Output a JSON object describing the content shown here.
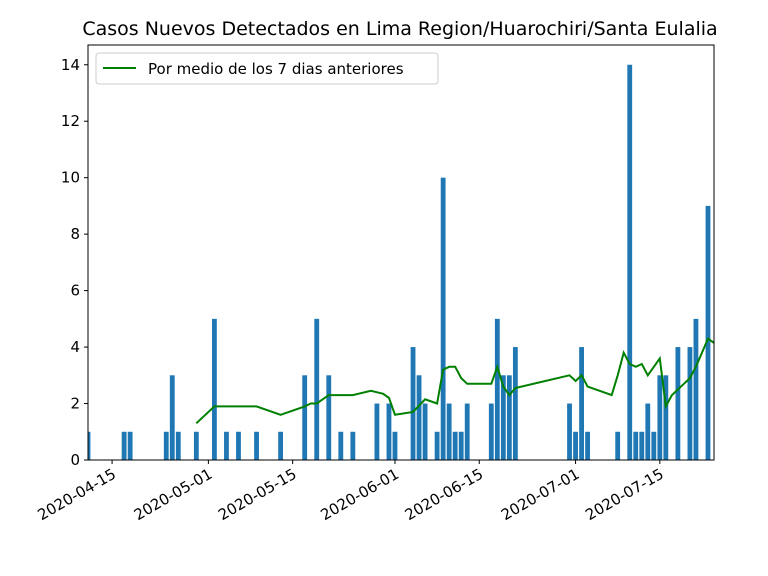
{
  "chart_data": {
    "type": "bar",
    "title": "Casos Nuevos Detectados en Lima Region/Huarochiri/Santa Eulalia",
    "xlabel": "",
    "ylabel": "",
    "ylim": [
      0,
      14.7
    ],
    "xlim": [
      "2020-04-11",
      "2020-07-24"
    ],
    "yticks": [
      0,
      2,
      4,
      6,
      8,
      10,
      12,
      14
    ],
    "xticks": [
      "2020-04-15",
      "2020-05-01",
      "2020-05-15",
      "2020-06-01",
      "2020-06-15",
      "2020-07-01",
      "2020-07-15"
    ],
    "grid": false,
    "legend_position": "top-left",
    "bar_color": "#1f77b4",
    "series": [
      {
        "type": "bar",
        "dates": [
          "2020-04-11",
          "2020-04-17",
          "2020-04-18",
          "2020-04-24",
          "2020-04-25",
          "2020-04-26",
          "2020-04-29",
          "2020-05-02",
          "2020-05-04",
          "2020-05-06",
          "2020-05-09",
          "2020-05-13",
          "2020-05-17",
          "2020-05-19",
          "2020-05-21",
          "2020-05-23",
          "2020-05-25",
          "2020-05-29",
          "2020-05-31",
          "2020-06-01",
          "2020-06-04",
          "2020-06-05",
          "2020-06-06",
          "2020-06-08",
          "2020-06-09",
          "2020-06-10",
          "2020-06-11",
          "2020-06-12",
          "2020-06-13",
          "2020-06-17",
          "2020-06-18",
          "2020-06-19",
          "2020-06-20",
          "2020-06-21",
          "2020-06-30",
          "2020-07-01",
          "2020-07-02",
          "2020-07-03",
          "2020-07-08",
          "2020-07-10",
          "2020-07-11",
          "2020-07-12",
          "2020-07-13",
          "2020-07-14",
          "2020-07-15",
          "2020-07-16",
          "2020-07-18",
          "2020-07-20",
          "2020-07-21",
          "2020-07-23",
          "2020-07-25"
        ],
        "values": [
          1,
          1,
          1,
          1,
          3,
          1,
          1,
          5,
          1,
          1,
          1,
          1,
          3,
          5,
          3,
          1,
          1,
          2,
          2,
          1,
          4,
          3,
          2,
          1,
          10,
          2,
          1,
          1,
          2,
          2,
          5,
          3,
          3,
          4,
          2,
          1,
          4,
          1,
          1,
          14,
          1,
          1,
          2,
          1,
          3,
          3,
          4,
          4,
          5,
          9,
          1
        ]
      },
      {
        "type": "line",
        "name": "Por medio de los 7 dias anteriores",
        "color": "#008000",
        "dates": [
          "2020-04-29",
          "2020-05-02",
          "2020-05-04",
          "2020-05-06",
          "2020-05-09",
          "2020-05-13",
          "2020-05-17",
          "2020-05-18",
          "2020-05-19",
          "2020-05-21",
          "2020-05-23",
          "2020-05-25",
          "2020-05-28",
          "2020-05-30",
          "2020-05-31",
          "2020-06-01",
          "2020-06-04",
          "2020-06-06",
          "2020-06-08",
          "2020-06-09",
          "2020-06-10",
          "2020-06-11",
          "2020-06-12",
          "2020-06-13",
          "2020-06-17",
          "2020-06-18",
          "2020-06-19",
          "2020-06-20",
          "2020-06-21",
          "2020-06-30",
          "2020-07-01",
          "2020-07-02",
          "2020-07-03",
          "2020-07-07",
          "2020-07-08",
          "2020-07-09",
          "2020-07-10",
          "2020-07-11",
          "2020-07-12",
          "2020-07-13",
          "2020-07-15",
          "2020-07-16",
          "2020-07-17",
          "2020-07-19",
          "2020-07-20",
          "2020-07-21",
          "2020-07-23",
          "2020-07-25"
        ],
        "values": [
          1.3,
          1.9,
          1.9,
          1.9,
          1.9,
          1.6,
          1.9,
          2.0,
          2.0,
          2.3,
          2.3,
          2.3,
          2.45,
          2.35,
          2.2,
          1.6,
          1.7,
          2.15,
          2.0,
          3.2,
          3.3,
          3.3,
          2.9,
          2.7,
          2.7,
          3.3,
          2.6,
          2.3,
          2.55,
          3.0,
          2.8,
          3.0,
          2.6,
          2.3,
          3.0,
          3.8,
          3.4,
          3.3,
          3.4,
          3.0,
          3.6,
          1.9,
          2.3,
          2.7,
          2.9,
          3.3,
          4.3,
          4.0
        ]
      }
    ]
  }
}
